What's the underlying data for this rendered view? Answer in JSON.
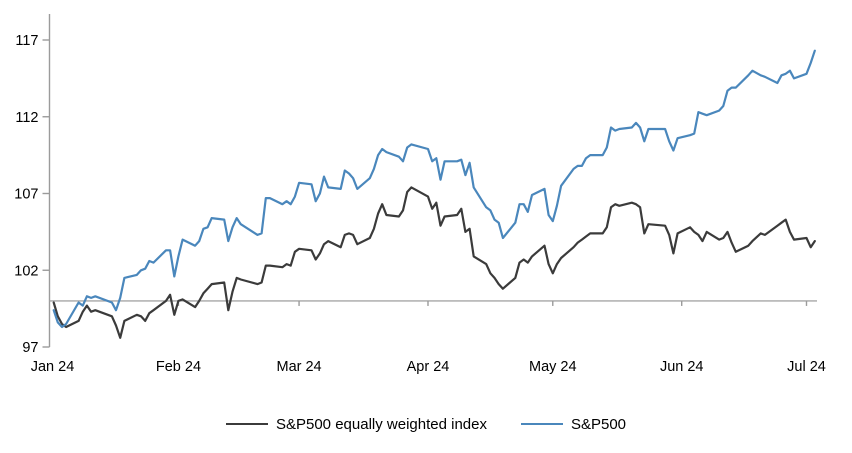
{
  "chart_data": {
    "type": "line",
    "title": "",
    "xlabel": "",
    "ylabel": "",
    "grid": false,
    "legend_position": "bottom",
    "y_ticks": [
      97,
      102,
      107,
      112,
      117
    ],
    "ylim": [
      96.8,
      118.7
    ],
    "baseline_value": 100,
    "x_ticks": [
      {
        "label": "Jan 24",
        "date": "1-1"
      },
      {
        "label": "Feb 24",
        "date": "2-1"
      },
      {
        "label": "Mar 24",
        "date": "3-1"
      },
      {
        "label": "Apr 24",
        "date": "4-1"
      },
      {
        "label": "May 24",
        "date": "5-1"
      },
      {
        "label": "Jun 24",
        "date": "6-1"
      },
      {
        "label": "Jul 24",
        "date": "7-1"
      }
    ],
    "colors": {
      "axis": "#9b9b9b",
      "baseline": "#a6a6a6",
      "equal_weight_line": "#3b3b3b",
      "sp500_line": "#4a87bc"
    },
    "dates": [
      "1-2",
      "1-3",
      "1-4",
      "1-5",
      "1-8",
      "1-9",
      "1-10",
      "1-11",
      "1-12",
      "1-16",
      "1-17",
      "1-18",
      "1-19",
      "1-22",
      "1-23",
      "1-24",
      "1-25",
      "1-26",
      "1-29",
      "1-30",
      "1-31",
      "2-1",
      "2-2",
      "2-5",
      "2-6",
      "2-7",
      "2-8",
      "2-9",
      "2-12",
      "2-13",
      "2-14",
      "2-15",
      "2-16",
      "2-20",
      "2-21",
      "2-22",
      "2-23",
      "2-26",
      "2-27",
      "2-28",
      "2-29",
      "3-1",
      "3-4",
      "3-5",
      "3-6",
      "3-7",
      "3-8",
      "3-11",
      "3-12",
      "3-13",
      "3-14",
      "3-15",
      "3-18",
      "3-19",
      "3-20",
      "3-21",
      "3-22",
      "3-25",
      "3-26",
      "3-27",
      "3-28",
      "4-1",
      "4-2",
      "4-3",
      "4-4",
      "4-5",
      "4-8",
      "4-9",
      "4-10",
      "4-11",
      "4-12",
      "4-15",
      "4-16",
      "4-17",
      "4-18",
      "4-19",
      "4-22",
      "4-23",
      "4-24",
      "4-25",
      "4-26",
      "4-29",
      "4-30",
      "5-1",
      "5-2",
      "5-3",
      "5-6",
      "5-7",
      "5-8",
      "5-9",
      "5-10",
      "5-13",
      "5-14",
      "5-15",
      "5-16",
      "5-17",
      "5-20",
      "5-21",
      "5-22",
      "5-23",
      "5-24",
      "5-28",
      "5-29",
      "5-30",
      "5-31",
      "6-3",
      "6-4",
      "6-5",
      "6-6",
      "6-7",
      "6-10",
      "6-11",
      "6-12",
      "6-13",
      "6-14",
      "6-17",
      "6-18",
      "6-20",
      "6-21",
      "6-24",
      "6-25",
      "6-26",
      "6-27",
      "6-28",
      "7-1",
      "7-2",
      "7-3"
    ],
    "series": [
      {
        "name": "S&P500 equally weighted index",
        "color": "#3b3b3b",
        "values": [
          99.9,
          99.0,
          98.5,
          98.3,
          98.7,
          99.3,
          99.7,
          99.3,
          99.4,
          99.0,
          98.4,
          97.6,
          98.7,
          99.1,
          99.0,
          98.7,
          99.2,
          99.4,
          100.0,
          100.4,
          99.1,
          100.0,
          100.1,
          99.6,
          100.0,
          100.5,
          100.8,
          101.1,
          101.2,
          99.4,
          100.6,
          101.5,
          101.4,
          101.1,
          101.2,
          102.3,
          102.3,
          102.2,
          102.4,
          102.3,
          103.2,
          103.4,
          103.3,
          102.7,
          103.1,
          103.7,
          103.9,
          103.5,
          104.3,
          104.4,
          104.3,
          103.7,
          104.1,
          104.7,
          105.7,
          106.3,
          105.6,
          105.5,
          105.9,
          107.1,
          107.4,
          106.8,
          106.0,
          106.4,
          104.9,
          105.5,
          105.6,
          106.0,
          104.5,
          104.7,
          102.9,
          102.4,
          101.8,
          101.5,
          101.1,
          100.8,
          101.5,
          102.5,
          102.7,
          102.5,
          102.9,
          103.6,
          102.4,
          101.8,
          102.4,
          102.8,
          103.5,
          103.8,
          104.0,
          104.2,
          104.4,
          104.4,
          104.8,
          106.1,
          106.3,
          106.2,
          106.4,
          106.3,
          106.1,
          104.4,
          105.0,
          104.9,
          104.3,
          103.1,
          104.4,
          104.8,
          104.5,
          104.3,
          103.9,
          104.5,
          104.0,
          104.1,
          104.5,
          103.8,
          103.2,
          103.6,
          103.9,
          104.4,
          104.3,
          104.9,
          105.1,
          105.3,
          104.5,
          104.0,
          104.1,
          103.5,
          103.9
        ]
      },
      {
        "name": "S&P500",
        "color": "#4a87bc",
        "values": [
          99.4,
          98.6,
          98.3,
          98.5,
          99.9,
          99.7,
          100.3,
          100.2,
          100.3,
          99.9,
          99.4,
          100.2,
          101.5,
          101.7,
          102.0,
          102.1,
          102.6,
          102.5,
          103.3,
          103.3,
          101.6,
          102.9,
          104.0,
          103.6,
          103.9,
          104.7,
          104.8,
          105.4,
          105.3,
          103.9,
          104.8,
          105.4,
          105.0,
          104.3,
          104.4,
          106.7,
          106.7,
          106.3,
          106.5,
          106.3,
          106.8,
          107.7,
          107.6,
          106.5,
          107.0,
          108.1,
          107.4,
          107.3,
          108.5,
          108.3,
          108.0,
          107.3,
          108.0,
          108.6,
          109.5,
          109.9,
          109.7,
          109.4,
          109.1,
          110.0,
          110.2,
          109.9,
          109.1,
          109.3,
          107.9,
          109.1,
          109.1,
          109.2,
          108.2,
          109.0,
          107.4,
          106.1,
          105.9,
          105.3,
          105.1,
          104.1,
          105.1,
          106.3,
          106.3,
          105.8,
          106.9,
          107.3,
          105.6,
          105.2,
          106.2,
          107.5,
          108.6,
          108.8,
          108.8,
          109.3,
          109.5,
          109.5,
          110.0,
          111.3,
          111.1,
          111.2,
          111.3,
          111.6,
          111.3,
          110.4,
          111.2,
          111.2,
          110.4,
          109.8,
          110.6,
          110.8,
          110.9,
          112.3,
          112.2,
          112.1,
          112.4,
          112.7,
          113.7,
          113.9,
          113.9,
          114.7,
          115.0,
          114.7,
          114.6,
          114.2,
          114.7,
          114.8,
          115.0,
          114.5,
          114.8,
          115.5,
          116.3
        ]
      }
    ]
  },
  "legend": {
    "equal_weight_label": "S&P500 equally weighted index",
    "sp500_label": "S&P500"
  }
}
